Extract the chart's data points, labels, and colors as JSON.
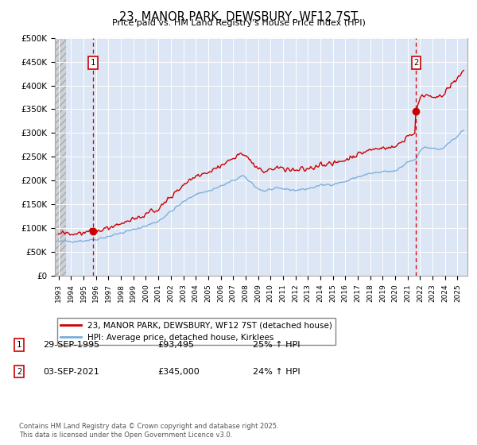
{
  "title": "23, MANOR PARK, DEWSBURY, WF12 7ST",
  "subtitle": "Price paid vs. HM Land Registry's House Price Index (HPI)",
  "ylim": [
    0,
    500000
  ],
  "yticks": [
    0,
    50000,
    100000,
    150000,
    200000,
    250000,
    300000,
    350000,
    400000,
    450000,
    500000
  ],
  "ytick_labels": [
    "£0",
    "£50K",
    "£100K",
    "£150K",
    "£200K",
    "£250K",
    "£300K",
    "£350K",
    "£400K",
    "£450K",
    "£500K"
  ],
  "sale1_year": 1995.75,
  "sale1_price": 93495,
  "sale2_year": 2021.67,
  "sale2_price": 345000,
  "sale1_date": "29-SEP-1995",
  "sale1_amount": "£93,495",
  "sale1_hpi": "25% ↑ HPI",
  "sale2_date": "03-SEP-2021",
  "sale2_amount": "£345,000",
  "sale2_hpi": "24% ↑ HPI",
  "legend1": "23, MANOR PARK, DEWSBURY, WF12 7ST (detached house)",
  "legend2": "HPI: Average price, detached house, Kirklees",
  "footer": "Contains HM Land Registry data © Crown copyright and database right 2025.\nThis data is licensed under the Open Government Licence v3.0.",
  "red_color": "#cc0000",
  "blue_color": "#7aadda",
  "bg_color": "#ffffff",
  "plot_bg_color": "#dce6f5",
  "grid_color": "#ffffff"
}
